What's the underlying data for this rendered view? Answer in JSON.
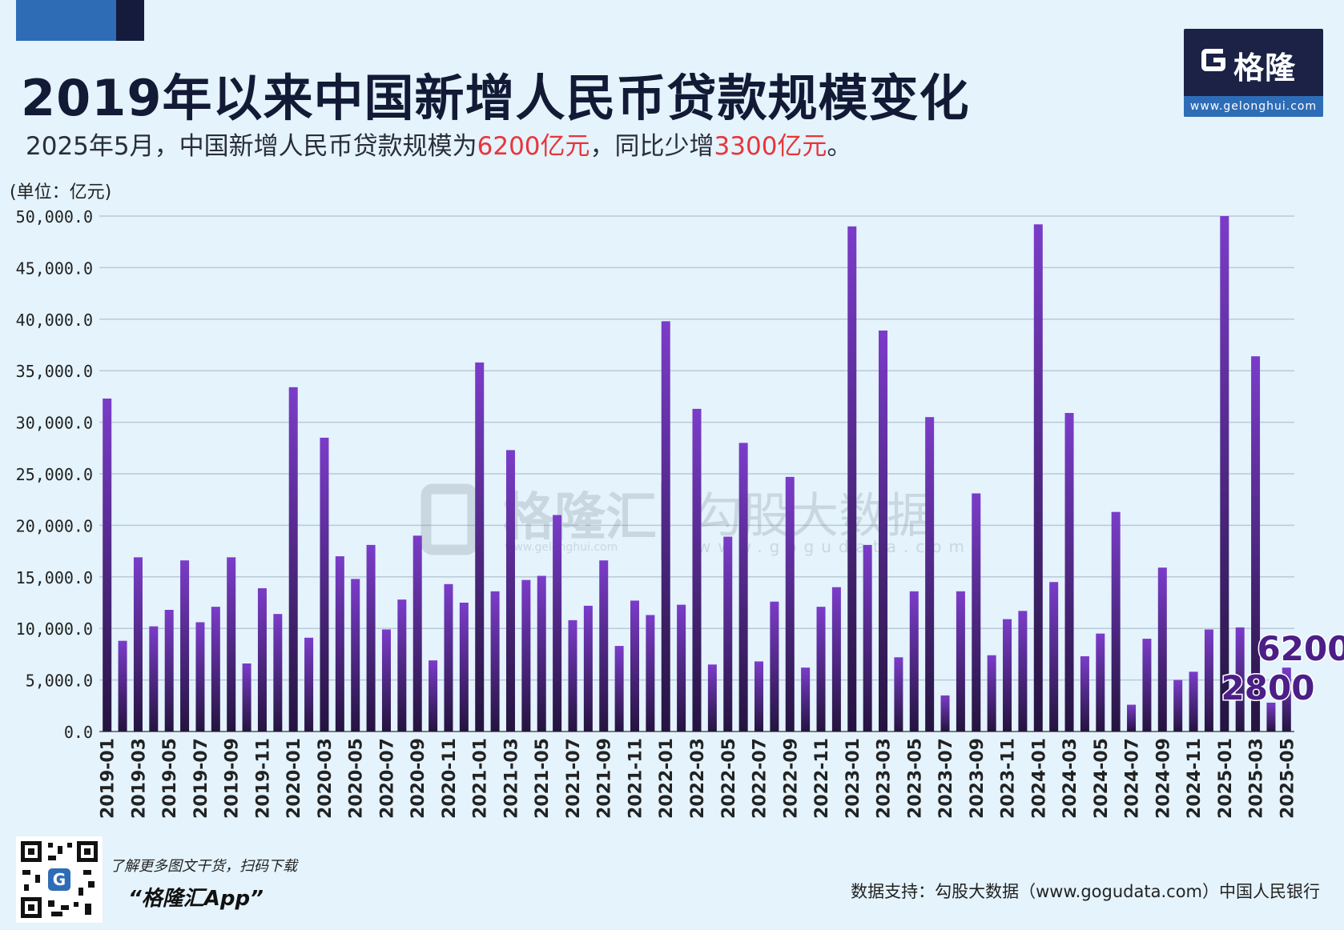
{
  "header": {
    "title": "2019年以来中国新增人民币贷款规模变化",
    "subtitle_parts": [
      "2025年5月，中国新增人民币贷款规模为",
      "6200亿元",
      "，同比少增",
      "3300亿元",
      "。"
    ],
    "unit": "(单位：亿元)"
  },
  "logo": {
    "text": "格隆汇",
    "url": "www.gelonghui.com"
  },
  "watermark": {
    "left_text": "格隆汇",
    "left_url": "www.gelonghui.com",
    "right_text": "勾股大数据",
    "right_url": "www.gogudata.com"
  },
  "footer": {
    "promo": "了解更多图文干货，扫码下载",
    "app": "“格隆汇App”",
    "source": "数据支持：勾股大数据（www.gogudata.com）中国人民银行"
  },
  "colors": {
    "bar_top": "#7b3cc9",
    "bar_bottom": "#24143f",
    "annotation": "#4b1f86",
    "grid": "#b9cbd8"
  },
  "chart_data": {
    "type": "bar",
    "ylim": [
      0,
      50000
    ],
    "y_ticks": [
      "0.0",
      "5,000.0",
      "10,000.0",
      "15,000.0",
      "20,000.0",
      "25,000.0",
      "30,000.0",
      "35,000.0",
      "40,000.0",
      "45,000.0",
      "50,000.0"
    ],
    "grid": true,
    "categories": [
      "2019-01",
      "2019-02",
      "2019-03",
      "2019-04",
      "2019-05",
      "2019-06",
      "2019-07",
      "2019-08",
      "2019-09",
      "2019-10",
      "2019-11",
      "2019-12",
      "2020-01",
      "2020-02",
      "2020-03",
      "2020-04",
      "2020-05",
      "2020-06",
      "2020-07",
      "2020-08",
      "2020-09",
      "2020-10",
      "2020-11",
      "2020-12",
      "2021-01",
      "2021-02",
      "2021-03",
      "2021-04",
      "2021-05",
      "2021-06",
      "2021-07",
      "2021-08",
      "2021-09",
      "2021-10",
      "2021-11",
      "2021-12",
      "2022-01",
      "2022-02",
      "2022-03",
      "2022-04",
      "2022-05",
      "2022-06",
      "2022-07",
      "2022-08",
      "2022-09",
      "2022-10",
      "2022-11",
      "2022-12",
      "2023-01",
      "2023-02",
      "2023-03",
      "2023-04",
      "2023-05",
      "2023-06",
      "2023-07",
      "2023-08",
      "2023-09",
      "2023-10",
      "2023-11",
      "2023-12",
      "2024-01",
      "2024-02",
      "2024-03",
      "2024-04",
      "2024-05",
      "2024-06",
      "2024-07",
      "2024-08",
      "2024-09",
      "2024-10",
      "2024-11",
      "2024-12",
      "2025-01",
      "2025-02",
      "2025-03",
      "2025-04",
      "2025-05"
    ],
    "values": [
      32300,
      8800,
      16900,
      10200,
      11800,
      16600,
      10600,
      12100,
      16900,
      6600,
      13900,
      11400,
      33400,
      9100,
      28500,
      17000,
      14800,
      18100,
      9900,
      12800,
      19000,
      6900,
      14300,
      12500,
      35800,
      13600,
      27300,
      14700,
      15100,
      21000,
      10800,
      12200,
      16600,
      8300,
      12700,
      11300,
      39800,
      12300,
      31300,
      6500,
      18900,
      28000,
      6800,
      12600,
      24700,
      6200,
      12100,
      14000,
      49000,
      18100,
      38900,
      7200,
      13600,
      30500,
      3500,
      13600,
      23100,
      7400,
      10900,
      11700,
      49200,
      14500,
      30900,
      7300,
      9500,
      21300,
      2600,
      9000,
      15900,
      5000,
      5800,
      9900,
      51300,
      10100,
      36400,
      2800,
      6200
    ],
    "x_tick_labels": [
      "2019-01",
      "2019-03",
      "2019-05",
      "2019-07",
      "2019-09",
      "2019-11",
      "2020-01",
      "2020-03",
      "2020-05",
      "2020-07",
      "2020-09",
      "2020-11",
      "2021-01",
      "2021-03",
      "2021-05",
      "2021-07",
      "2021-09",
      "2021-11",
      "2022-01",
      "2022-03",
      "2022-05",
      "2022-07",
      "2022-09",
      "2022-11",
      "2023-01",
      "2023-03",
      "2023-05",
      "2023-07",
      "2023-09",
      "2023-11",
      "2024-01",
      "2024-03",
      "2024-05",
      "2024-07",
      "2024-09",
      "2024-11",
      "2025-01",
      "2025-03",
      "2025-05"
    ],
    "annotations": [
      {
        "category": "2025-05",
        "text": "6200"
      },
      {
        "category": "2025-04",
        "text": "2800"
      }
    ]
  }
}
